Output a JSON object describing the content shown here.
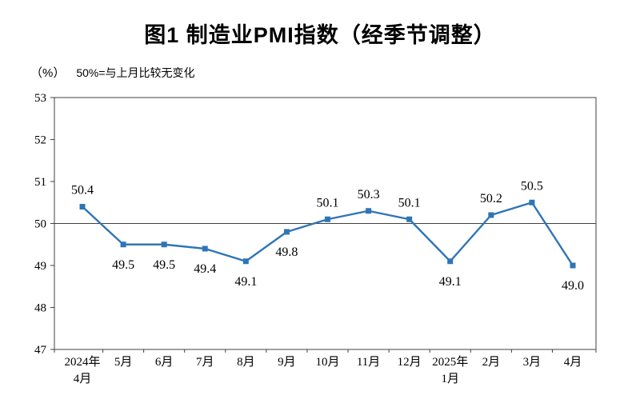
{
  "title": "图1  制造业PMI指数（经季节调整）",
  "subtitle": {
    "unit": "（%）",
    "note": "50%=与上月比较无变化"
  },
  "chart_data": {
    "type": "line",
    "title": "图1 制造业PMI指数（经季节调整）",
    "categories": [
      "2024年\n4月",
      "5月",
      "6月",
      "7月",
      "8月",
      "9月",
      "10月",
      "11月",
      "12月",
      "2025年\n1月",
      "2月",
      "3月",
      "4月"
    ],
    "values": [
      50.4,
      49.5,
      49.5,
      49.4,
      49.1,
      49.8,
      50.1,
      50.3,
      50.1,
      49.1,
      50.2,
      50.5,
      49.0
    ],
    "ylabel_unit": "%",
    "ylim": [
      47,
      53
    ],
    "yticks": [
      53,
      52,
      51,
      50,
      49,
      48,
      47
    ],
    "reference_line": 50,
    "reference_note": "50%=与上月比较无变化",
    "line_color": "#2E75B6",
    "axis_color": "#404040",
    "label_positions": [
      "above",
      "below",
      "below",
      "below",
      "below",
      "below",
      "above",
      "above",
      "above",
      "below",
      "above",
      "above",
      "below"
    ],
    "grid": false,
    "legend": false
  }
}
